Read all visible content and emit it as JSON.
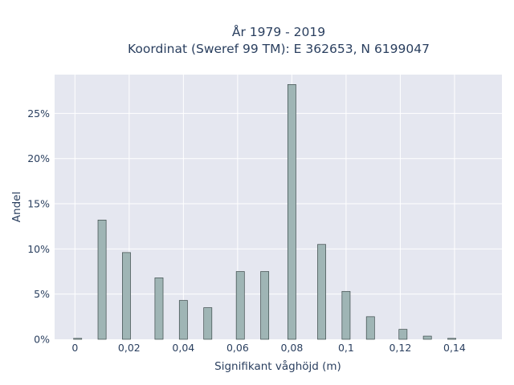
{
  "chart_data": {
    "type": "bar",
    "title_line1": "År 1979 - 2019",
    "title_line2": "Koordinat (Sweref 99 TM): E 362653, N 6199047",
    "xlabel": "Signifikant våghöjd (m)",
    "ylabel": "Andel",
    "xlim": [
      -0.0075,
      0.1575
    ],
    "ylim": [
      0,
      29.3
    ],
    "x_ticks": [
      {
        "value": 0,
        "label": "0"
      },
      {
        "value": 0.02,
        "label": "0,02"
      },
      {
        "value": 0.04,
        "label": "0,04"
      },
      {
        "value": 0.06,
        "label": "0,06"
      },
      {
        "value": 0.08,
        "label": "0,08"
      },
      {
        "value": 0.1,
        "label": "0,1"
      },
      {
        "value": 0.12,
        "label": "0,12"
      },
      {
        "value": 0.14,
        "label": "0,14"
      }
    ],
    "y_ticks": [
      {
        "value": 0,
        "label": "0%"
      },
      {
        "value": 5,
        "label": "5%"
      },
      {
        "value": 10,
        "label": "10%"
      },
      {
        "value": 15,
        "label": "15%"
      },
      {
        "value": 20,
        "label": "20%"
      },
      {
        "value": 25,
        "label": "25%"
      }
    ],
    "bars": [
      {
        "x": 0.001,
        "value": 0.1
      },
      {
        "x": 0.01,
        "value": 13.2
      },
      {
        "x": 0.019,
        "value": 9.6
      },
      {
        "x": 0.031,
        "value": 6.8
      },
      {
        "x": 0.04,
        "value": 4.3
      },
      {
        "x": 0.049,
        "value": 3.5
      },
      {
        "x": 0.061,
        "value": 7.5
      },
      {
        "x": 0.07,
        "value": 7.5
      },
      {
        "x": 0.08,
        "value": 28.2
      },
      {
        "x": 0.091,
        "value": 10.5
      },
      {
        "x": 0.1,
        "value": 5.3
      },
      {
        "x": 0.109,
        "value": 2.5
      },
      {
        "x": 0.121,
        "value": 1.1
      },
      {
        "x": 0.13,
        "value": 0.35
      },
      {
        "x": 0.139,
        "value": 0.1
      }
    ],
    "bar_width": 0.003,
    "grid": true,
    "colors": {
      "plot_bg": "#e5e7f0",
      "grid": "#ffffff",
      "bar_fill": "#9fb5b5",
      "bar_stroke": "#3c4a4a",
      "text": "#2a3f5f"
    }
  }
}
